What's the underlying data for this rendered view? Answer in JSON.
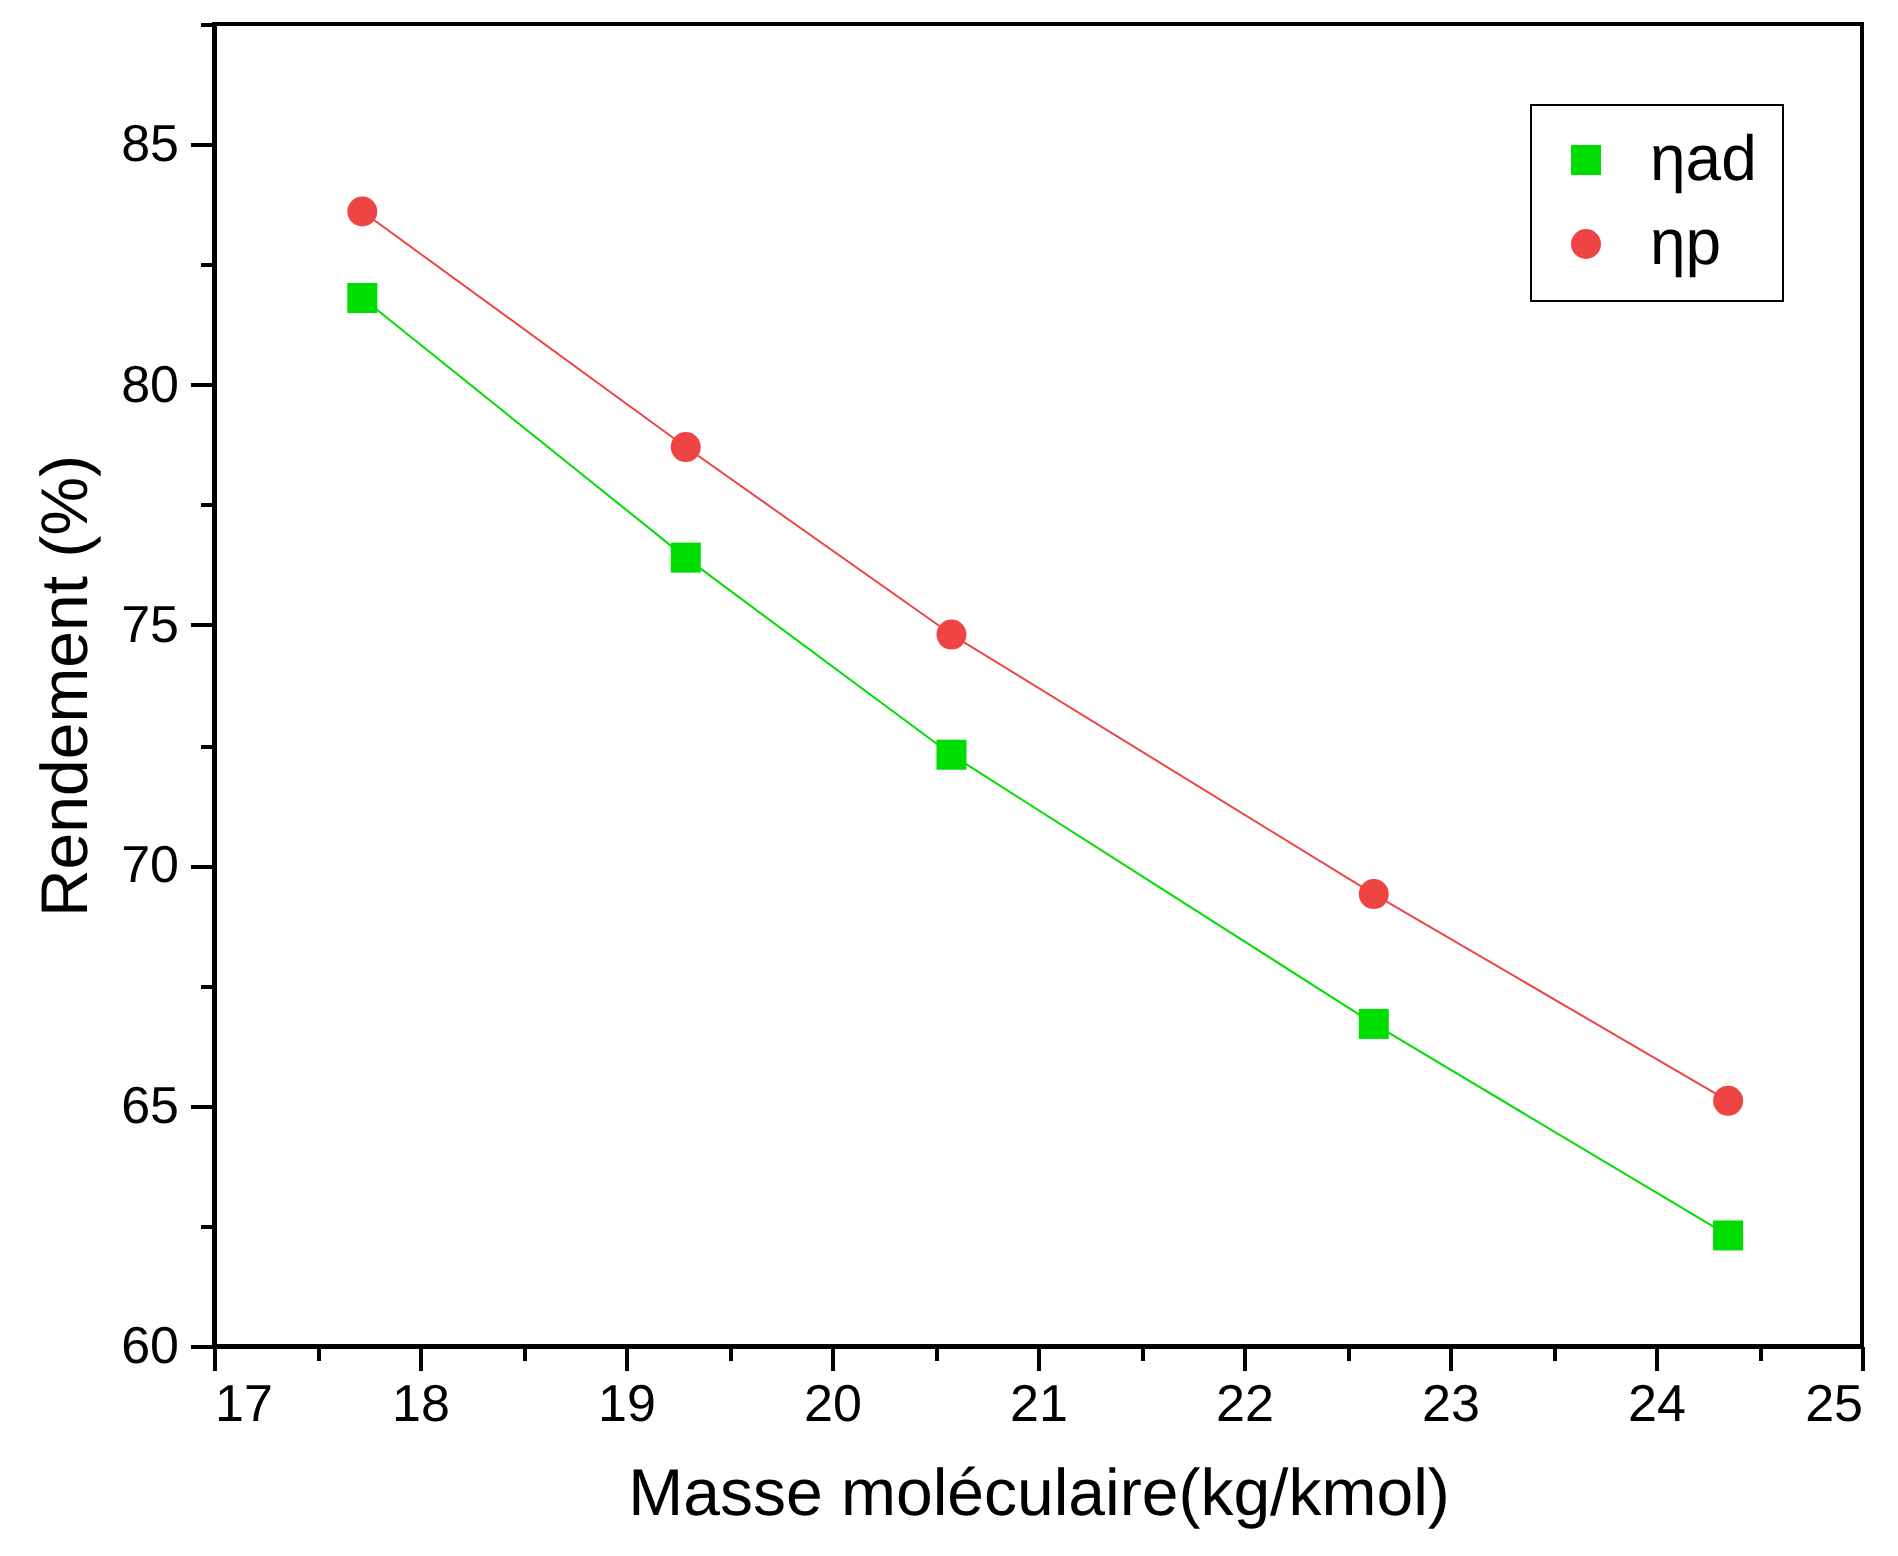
{
  "chart_data": {
    "type": "line",
    "xlabel": "Masse moléculaire(kg/kmol)",
    "ylabel": "Rendement (%)",
    "x": [
      17.72,
      19.29,
      20.58,
      22.63,
      24.35
    ],
    "series": [
      {
        "name": "ηad",
        "color": "#00dd00",
        "marker": "square",
        "values": [
          81.8,
          76.4,
          72.3,
          66.7,
          62.3
        ]
      },
      {
        "name": "ηp",
        "color": "#ef4444",
        "marker": "circle",
        "values": [
          83.6,
          78.7,
          74.8,
          69.4,
          65.1
        ]
      }
    ],
    "xlim": [
      17,
      25
    ],
    "ylim": [
      60,
      87.5
    ],
    "xticks": [
      17,
      {
        "value": 17.5,
        "label": null
      },
      18,
      {
        "value": 18.5,
        "label": null
      },
      19,
      {
        "value": 19.5,
        "label": null
      },
      20,
      {
        "value": 20.5,
        "label": null
      },
      21,
      {
        "value": 21.5,
        "label": null
      },
      22,
      {
        "value": 22.5,
        "label": null
      },
      23,
      {
        "value": 23.5,
        "label": null
      },
      24,
      {
        "value": 24.5,
        "label": null
      },
      25
    ],
    "yticks": [
      60,
      {
        "value": 62.5,
        "label": null
      },
      65,
      {
        "value": 67.5,
        "label": null
      },
      70,
      {
        "value": 72.5,
        "label": null
      },
      75,
      {
        "value": 77.5,
        "label": null
      },
      80,
      {
        "value": 82.5,
        "label": null
      },
      85,
      {
        "value": 87.5,
        "label": null
      }
    ],
    "legend": "top right",
    "line_style": "solid"
  }
}
